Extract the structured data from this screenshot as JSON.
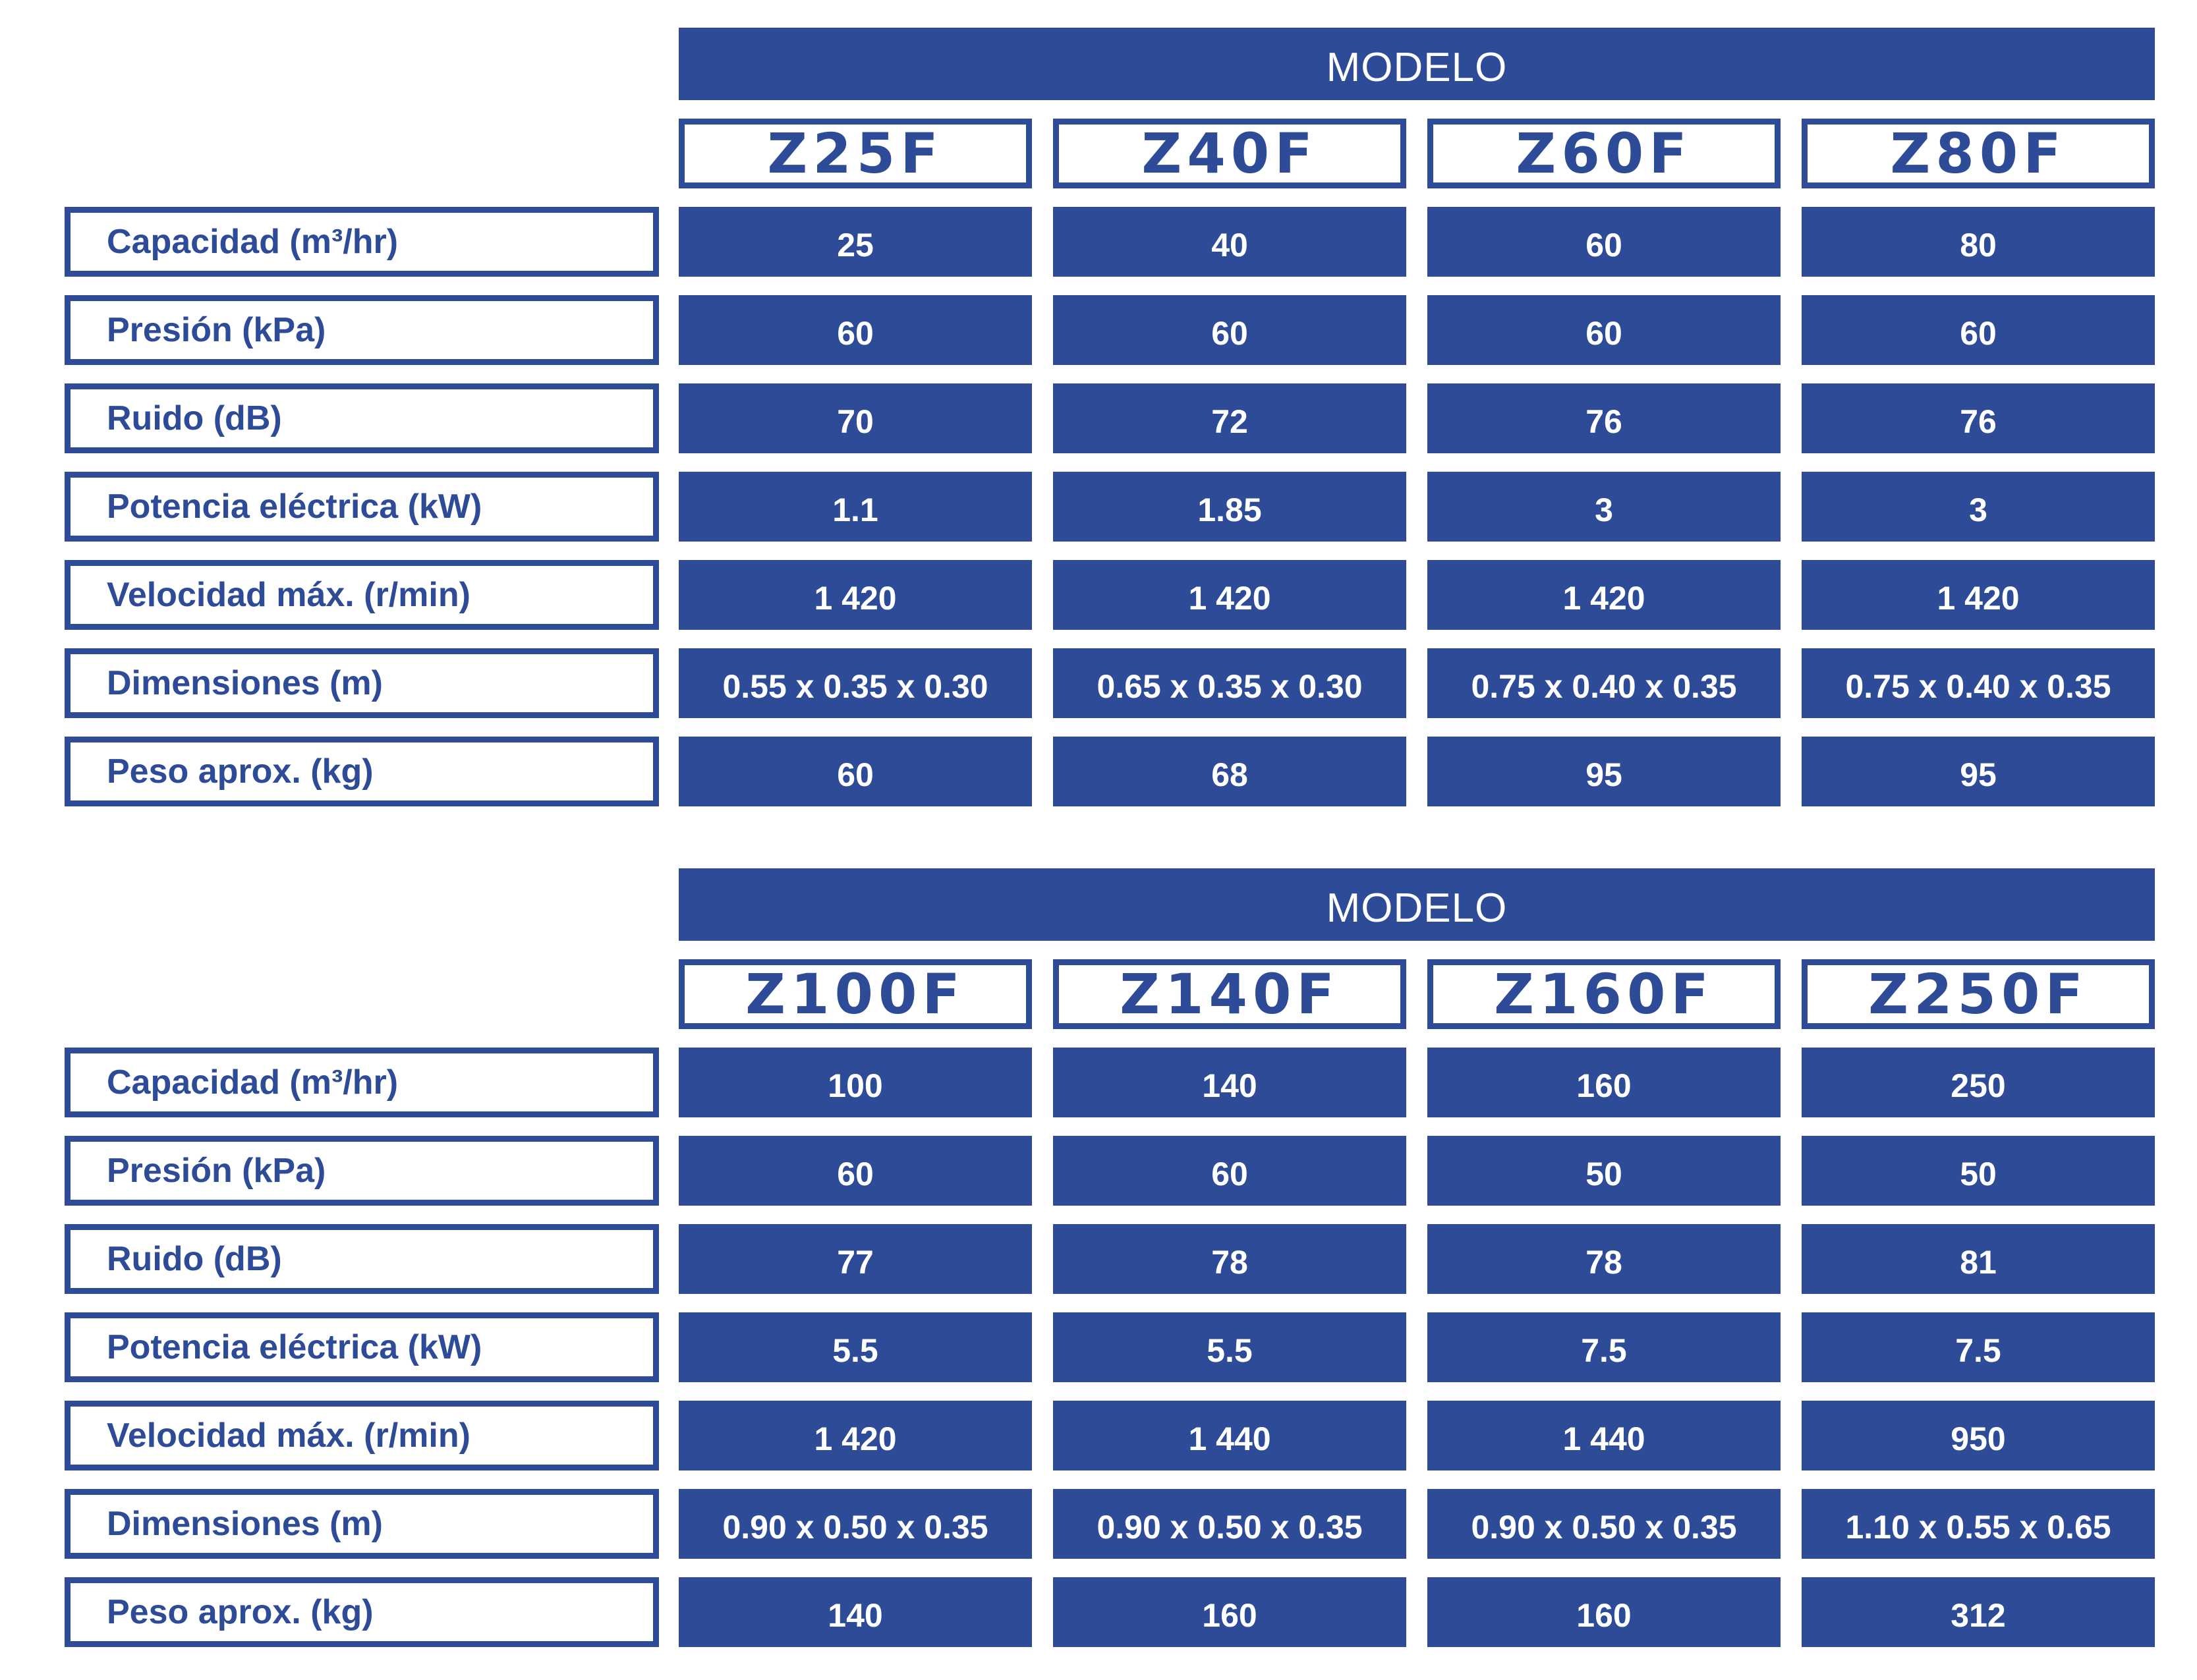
{
  "tables": [
    {
      "header": "MODELO",
      "models": [
        "Z25F",
        "Z40F",
        "Z60F",
        "Z80F"
      ],
      "rows": [
        {
          "label": "Capacidad (m³/hr)",
          "values": [
            "25",
            "40",
            "60",
            "80"
          ]
        },
        {
          "label": "Presión (kPa)",
          "values": [
            "60",
            "60",
            "60",
            "60"
          ]
        },
        {
          "label": "Ruido (dB)",
          "values": [
            "70",
            "72",
            "76",
            "76"
          ]
        },
        {
          "label": "Potencia eléctrica (kW)",
          "values": [
            "1.1",
            "1.85",
            "3",
            "3"
          ]
        },
        {
          "label": "Velocidad máx. (r/min)",
          "values": [
            "1 420",
            "1 420",
            "1 420",
            "1 420"
          ]
        },
        {
          "label": "Dimensiones (m)",
          "values": [
            "0.55 x 0.35 x 0.30",
            "0.65 x 0.35 x 0.30",
            "0.75 x 0.40 x 0.35",
            "0.75 x 0.40 x 0.35"
          ]
        },
        {
          "label": "Peso aprox. (kg)",
          "values": [
            "60",
            "68",
            "95",
            "95"
          ]
        }
      ]
    },
    {
      "header": "MODELO",
      "models": [
        "Z100F",
        "Z140F",
        "Z160F",
        "Z250F"
      ],
      "rows": [
        {
          "label": "Capacidad (m³/hr)",
          "values": [
            "100",
            "140",
            "160",
            "250"
          ]
        },
        {
          "label": "Presión (kPa)",
          "values": [
            "60",
            "60",
            "50",
            "50"
          ]
        },
        {
          "label": "Ruido (dB)",
          "values": [
            "77",
            "78",
            "78",
            "81"
          ]
        },
        {
          "label": "Potencia eléctrica (kW)",
          "values": [
            "5.5",
            "5.5",
            "7.5",
            "7.5"
          ]
        },
        {
          "label": "Velocidad máx. (r/min)",
          "values": [
            "1 420",
            "1 440",
            "1 440",
            "950"
          ]
        },
        {
          "label": "Dimensiones (m)",
          "values": [
            "0.90 x 0.50 x 0.35",
            "0.90 x 0.50 x 0.35",
            "0.90 x 0.50 x 0.35",
            "1.10 x 0.55 x 0.65"
          ]
        },
        {
          "label": "Peso aprox. (kg)",
          "values": [
            "140",
            "160",
            "160",
            "312"
          ]
        }
      ]
    }
  ],
  "colors": {
    "primary": "#2d4b97",
    "background": "#ffffff"
  }
}
